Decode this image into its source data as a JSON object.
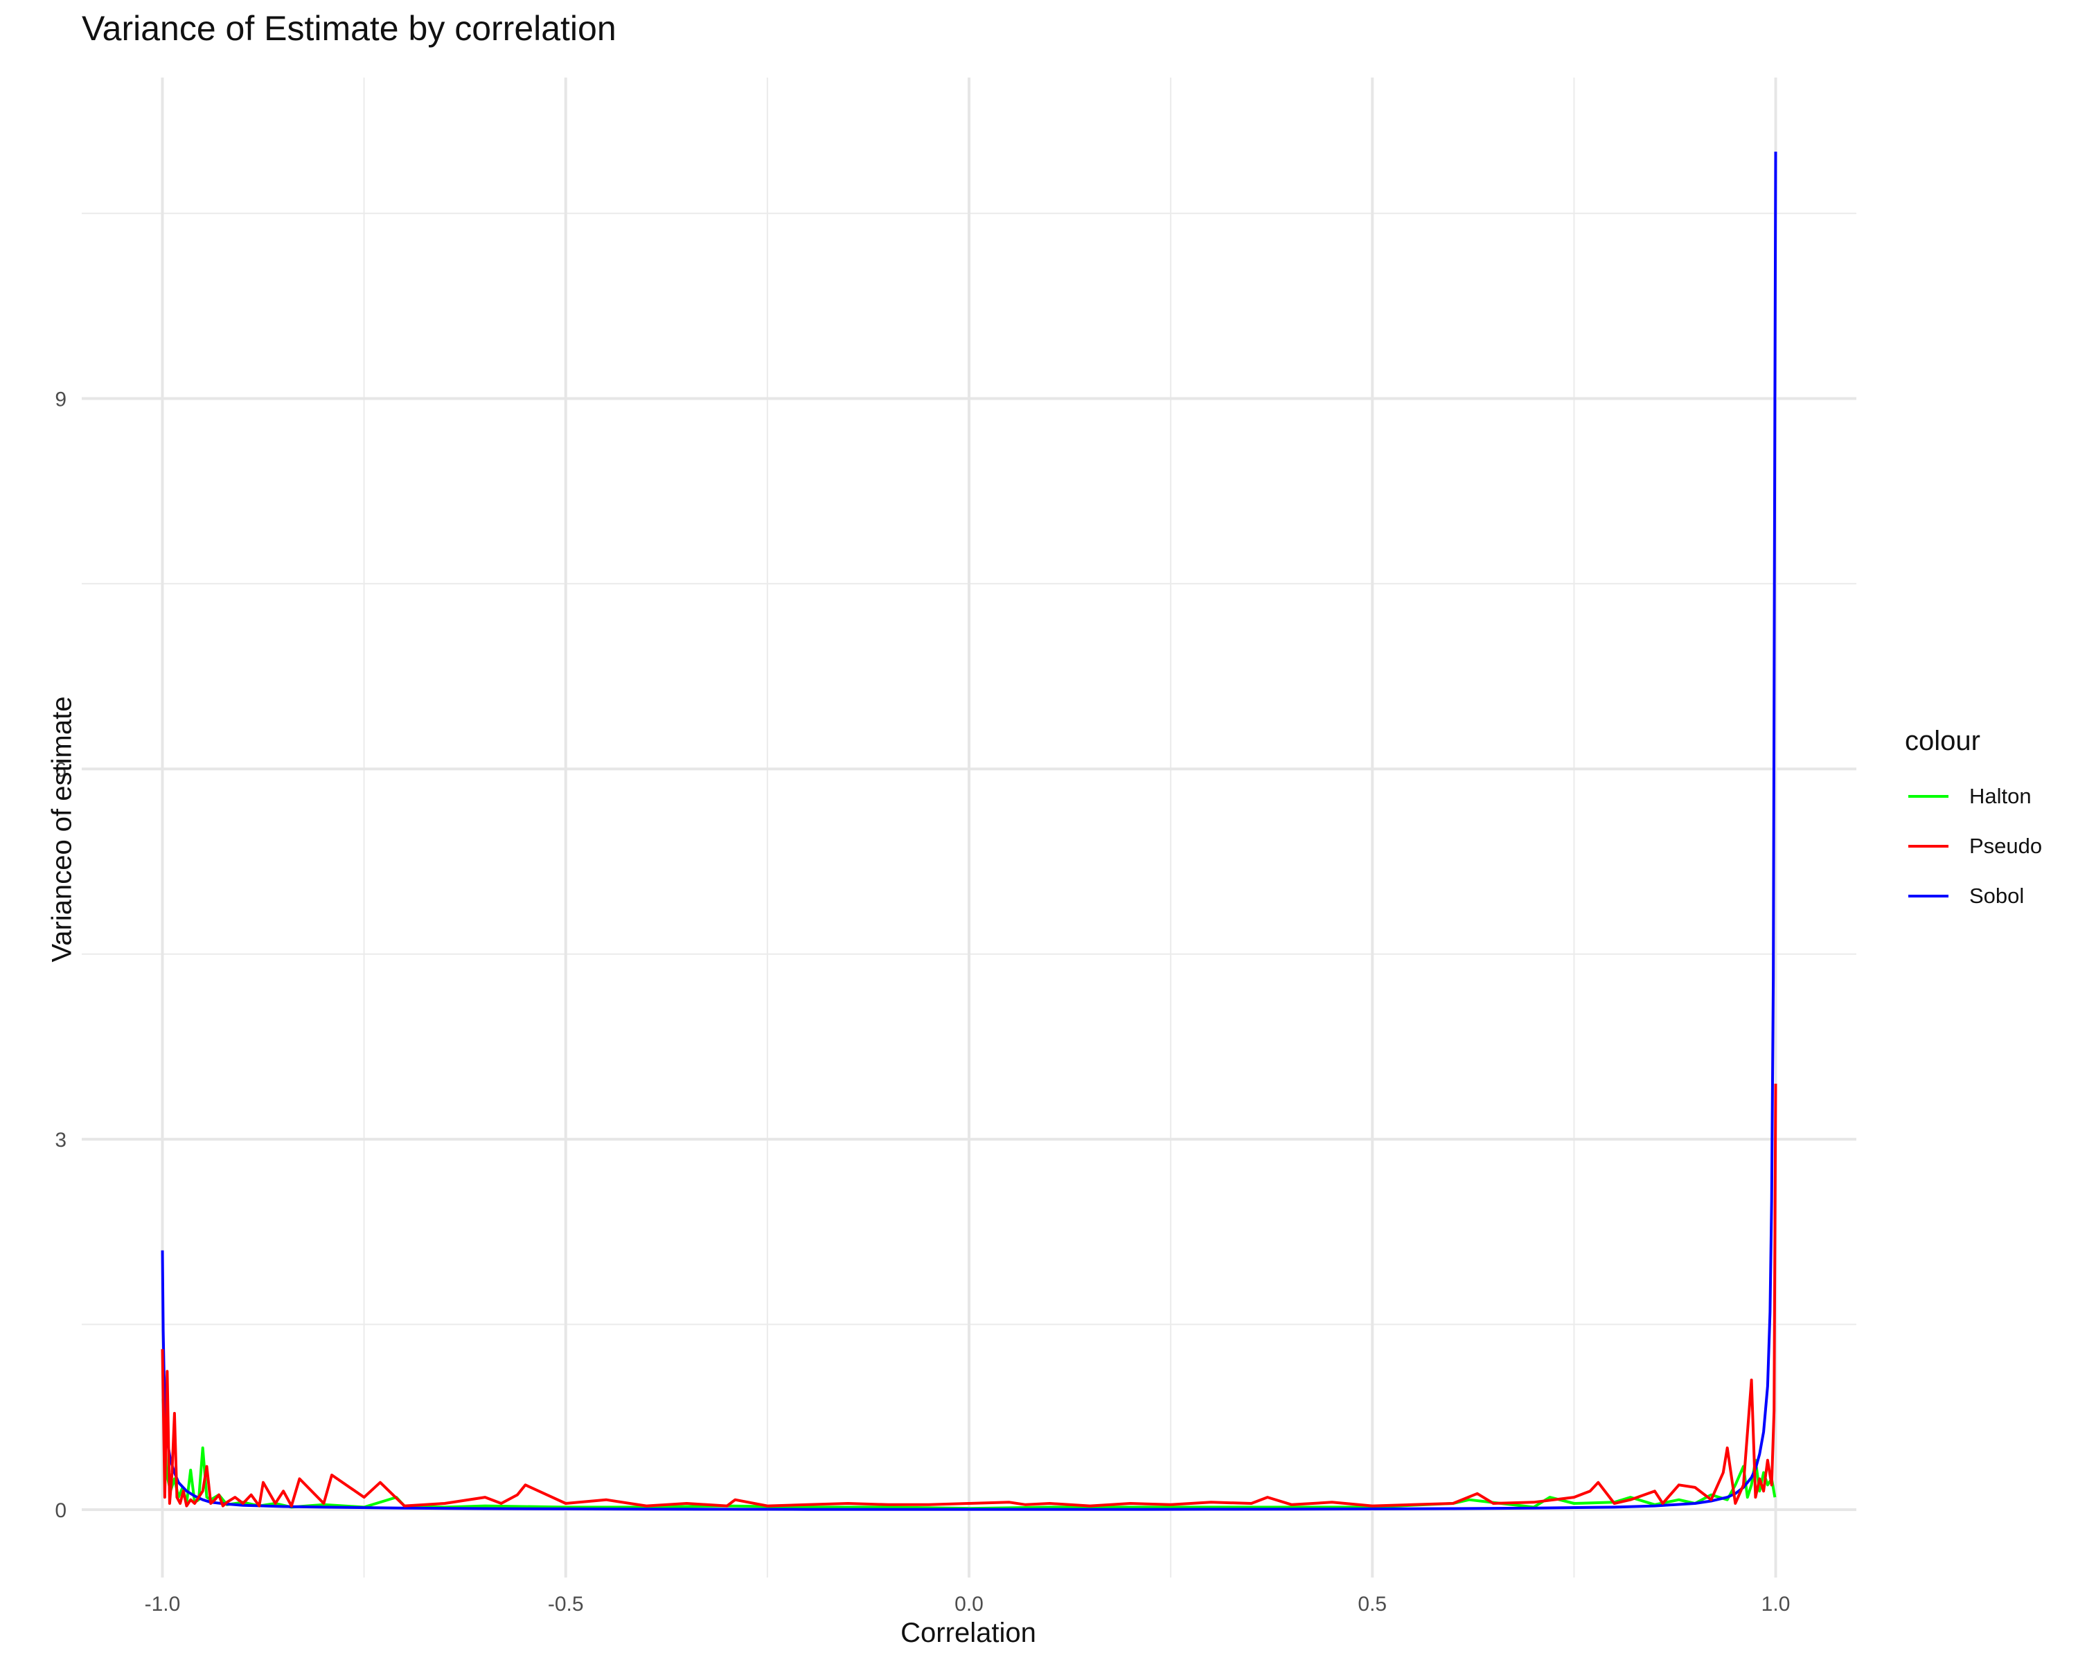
{
  "chart_data": {
    "type": "line",
    "title": "Variance of Estimate by correlation",
    "xlabel": "Correlation",
    "ylabel": "Varianceo of estimate",
    "xlim": [
      -1.1,
      1.1
    ],
    "ylim": [
      -0.55,
      11.6
    ],
    "x_ticks": [
      -1.0,
      -0.5,
      0.0,
      0.5,
      1.0
    ],
    "x_tick_labels": [
      "-1.0",
      "-0.5",
      "0.0",
      "0.5",
      "1.0"
    ],
    "y_ticks": [
      0,
      3,
      6,
      9
    ],
    "y_tick_labels": [
      "0",
      "3",
      "6",
      "9"
    ],
    "grid": true,
    "legend": {
      "title": "colour",
      "position": "right",
      "entries": [
        {
          "name": "Halton",
          "color": "#00ff00"
        },
        {
          "name": "Pseudo",
          "color": "#ff0000"
        },
        {
          "name": "Sobol",
          "color": "#0000ff"
        }
      ]
    },
    "series": [
      {
        "name": "Halton",
        "color": "#00ff00",
        "x": [
          -0.999,
          -0.995,
          -0.99,
          -0.985,
          -0.98,
          -0.975,
          -0.97,
          -0.965,
          -0.96,
          -0.955,
          -0.95,
          -0.945,
          -0.94,
          -0.93,
          -0.92,
          -0.9,
          -0.88,
          -0.86,
          -0.84,
          -0.8,
          -0.75,
          -0.71,
          -0.7,
          -0.65,
          -0.6,
          -0.5,
          -0.4,
          -0.3,
          -0.2,
          -0.1,
          0.0,
          0.1,
          0.2,
          0.3,
          0.4,
          0.5,
          0.6,
          0.62,
          0.7,
          0.72,
          0.75,
          0.8,
          0.82,
          0.85,
          0.88,
          0.9,
          0.92,
          0.94,
          0.95,
          0.96,
          0.965,
          0.97,
          0.975,
          0.98,
          0.985,
          0.99,
          0.995,
          0.999
        ],
        "y": [
          0.9,
          0.3,
          0.15,
          0.25,
          0.1,
          0.18,
          0.05,
          0.32,
          0.06,
          0.08,
          0.5,
          0.1,
          0.08,
          0.12,
          0.04,
          0.06,
          0.03,
          0.05,
          0.02,
          0.04,
          0.02,
          0.1,
          0.03,
          0.02,
          0.03,
          0.02,
          0.02,
          0.03,
          0.02,
          0.02,
          0.01,
          0.02,
          0.02,
          0.02,
          0.02,
          0.02,
          0.05,
          0.08,
          0.02,
          0.1,
          0.05,
          0.06,
          0.1,
          0.04,
          0.08,
          0.05,
          0.12,
          0.08,
          0.2,
          0.35,
          0.1,
          0.2,
          0.4,
          0.15,
          0.3,
          0.2,
          0.25,
          0.1
        ]
      },
      {
        "name": "Pseudo",
        "color": "#ff0000",
        "x": [
          -1.0,
          -0.997,
          -0.994,
          -0.991,
          -0.988,
          -0.985,
          -0.982,
          -0.978,
          -0.974,
          -0.97,
          -0.965,
          -0.96,
          -0.955,
          -0.95,
          -0.945,
          -0.94,
          -0.935,
          -0.93,
          -0.925,
          -0.92,
          -0.91,
          -0.9,
          -0.89,
          -0.88,
          -0.875,
          -0.86,
          -0.85,
          -0.84,
          -0.83,
          -0.8,
          -0.79,
          -0.75,
          -0.73,
          -0.7,
          -0.65,
          -0.6,
          -0.58,
          -0.56,
          -0.55,
          -0.5,
          -0.45,
          -0.4,
          -0.35,
          -0.3,
          -0.29,
          -0.25,
          -0.2,
          -0.15,
          -0.1,
          -0.05,
          0.0,
          0.05,
          0.07,
          0.1,
          0.15,
          0.2,
          0.25,
          0.3,
          0.35,
          0.37,
          0.4,
          0.45,
          0.5,
          0.55,
          0.6,
          0.63,
          0.65,
          0.7,
          0.75,
          0.77,
          0.78,
          0.8,
          0.82,
          0.85,
          0.86,
          0.88,
          0.9,
          0.92,
          0.935,
          0.94,
          0.95,
          0.96,
          0.97,
          0.975,
          0.98,
          0.985,
          0.99,
          0.995,
          0.998,
          1.0
        ],
        "y": [
          1.3,
          0.1,
          1.12,
          0.05,
          0.3,
          0.78,
          0.1,
          0.05,
          0.15,
          0.03,
          0.08,
          0.05,
          0.1,
          0.15,
          0.35,
          0.05,
          0.08,
          0.12,
          0.03,
          0.06,
          0.1,
          0.05,
          0.12,
          0.03,
          0.22,
          0.05,
          0.15,
          0.03,
          0.25,
          0.05,
          0.28,
          0.1,
          0.22,
          0.03,
          0.05,
          0.1,
          0.05,
          0.12,
          0.2,
          0.05,
          0.08,
          0.03,
          0.05,
          0.03,
          0.08,
          0.03,
          0.04,
          0.05,
          0.04,
          0.04,
          0.05,
          0.06,
          0.04,
          0.05,
          0.03,
          0.05,
          0.04,
          0.06,
          0.05,
          0.1,
          0.04,
          0.06,
          0.03,
          0.04,
          0.05,
          0.13,
          0.05,
          0.06,
          0.1,
          0.15,
          0.22,
          0.05,
          0.08,
          0.15,
          0.05,
          0.2,
          0.18,
          0.08,
          0.3,
          0.5,
          0.05,
          0.2,
          1.05,
          0.1,
          0.25,
          0.15,
          0.4,
          0.2,
          0.8,
          3.45
        ]
      },
      {
        "name": "Sobol",
        "color": "#0000ff",
        "x": [
          -1.0,
          -0.999,
          -0.998,
          -0.995,
          -0.99,
          -0.985,
          -0.98,
          -0.97,
          -0.96,
          -0.95,
          -0.94,
          -0.92,
          -0.9,
          -0.85,
          -0.8,
          -0.7,
          -0.6,
          -0.5,
          -0.4,
          -0.3,
          -0.2,
          -0.1,
          0.0,
          0.1,
          0.2,
          0.3,
          0.4,
          0.5,
          0.6,
          0.7,
          0.8,
          0.85,
          0.9,
          0.92,
          0.94,
          0.95,
          0.96,
          0.97,
          0.975,
          0.98,
          0.985,
          0.99,
          0.993,
          0.995,
          0.997,
          0.998,
          0.999,
          1.0
        ],
        "y": [
          2.1,
          1.45,
          1.1,
          0.6,
          0.4,
          0.3,
          0.22,
          0.15,
          0.11,
          0.08,
          0.06,
          0.045,
          0.035,
          0.025,
          0.02,
          0.012,
          0.008,
          0.006,
          0.004,
          0.003,
          0.002,
          0.002,
          0.002,
          0.002,
          0.002,
          0.003,
          0.004,
          0.006,
          0.008,
          0.012,
          0.02,
          0.03,
          0.05,
          0.07,
          0.1,
          0.13,
          0.18,
          0.26,
          0.33,
          0.45,
          0.63,
          1.0,
          1.6,
          2.5,
          4.3,
          6.5,
          9.0,
          11.0
        ]
      }
    ]
  }
}
